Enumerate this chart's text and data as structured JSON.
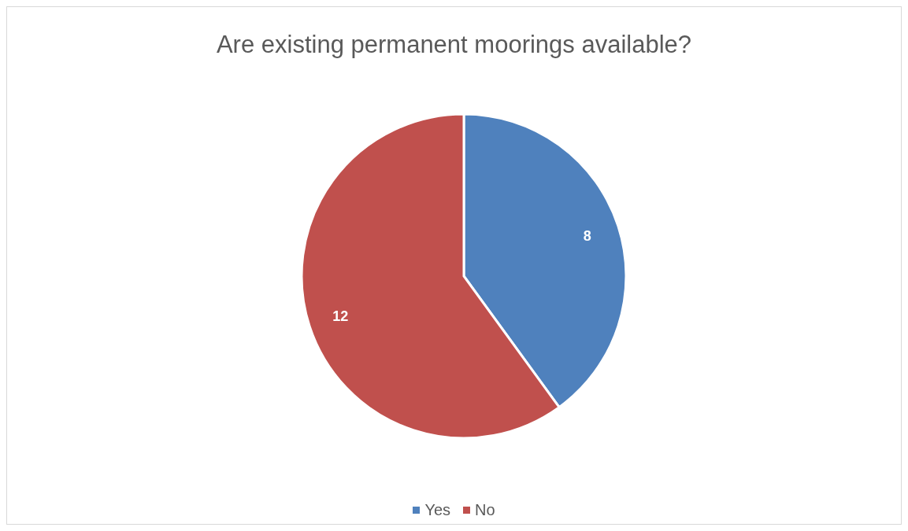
{
  "chart_data": {
    "type": "pie",
    "title": "Are existing permanent moorings available?",
    "categories": [
      "Yes",
      "No"
    ],
    "values": [
      8,
      12
    ],
    "colors": [
      "#4f81bd",
      "#c0504d"
    ],
    "data_labels": true,
    "legend": "bottom"
  }
}
